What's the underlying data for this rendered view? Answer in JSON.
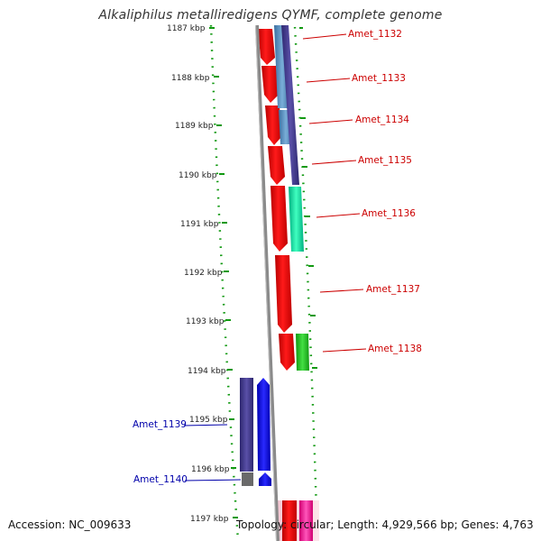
{
  "title": "Alkaliphilus metalliredigens QYMF, complete genome",
  "footer": {
    "accession": "Accession: NC_009633",
    "topology": "Topology: circular; Length: 4,929,566 bp; Genes: 4,763"
  },
  "colors": {
    "forward_label": "#cc0000",
    "reverse_label": "#0000aa",
    "tick": "#007700",
    "backbone": "#888888",
    "red_gene": "#ff0000",
    "purple_gene": "#4a4090",
    "blue_gene": "#0000ff",
    "cyan_gene": "#00e0a0",
    "green_gene": "#22cc22",
    "steel_gene": "#5a8fc0",
    "pink_gene": "#ff2aa0",
    "gray_gene": "#6a6a6a"
  },
  "scale": {
    "unit": "kbp",
    "ticks": [
      "1187 kbp",
      "1188 kbp",
      "1189 kbp",
      "1190 kbp",
      "1191 kbp",
      "1192 kbp",
      "1193 kbp",
      "1194 kbp",
      "1195 kbp",
      "1196 kbp",
      "1197 kbp"
    ]
  },
  "genes": {
    "forward": [
      {
        "name": "Amet_1132",
        "start": 1186.9,
        "end": 1187.7
      },
      {
        "name": "Amet_1133",
        "start": 1187.7,
        "end": 1188.6
      },
      {
        "name": "Amet_1134",
        "start": 1188.6,
        "end": 1189.4
      },
      {
        "name": "Amet_1135",
        "start": 1189.4,
        "end": 1190.2
      },
      {
        "name": "Amet_1136",
        "start": 1190.2,
        "end": 1191.6
      },
      {
        "name": "Amet_1137",
        "start": 1191.7,
        "end": 1193.3
      },
      {
        "name": "Amet_1138",
        "start": 1193.3,
        "end": 1194.0
      }
    ],
    "reverse": [
      {
        "name": "Amet_1139",
        "start": 1194.2,
        "end": 1196.2
      },
      {
        "name": "Amet_1140",
        "start": 1196.2,
        "end": 1196.5
      }
    ]
  }
}
